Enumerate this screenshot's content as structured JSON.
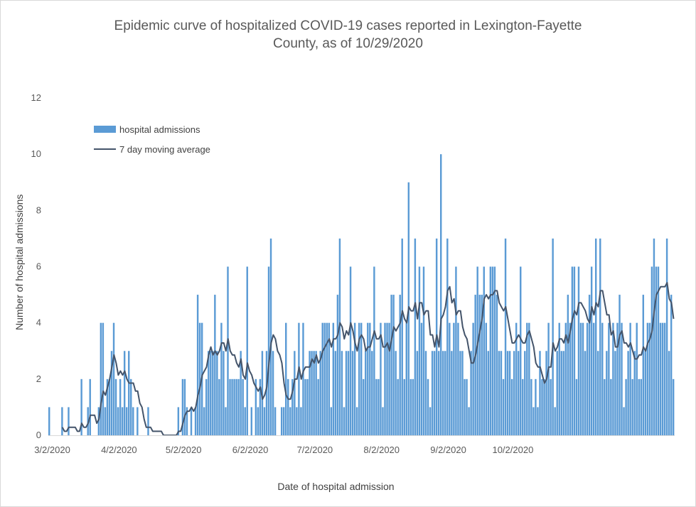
{
  "chart_data": {
    "type": "bar",
    "title_line1": "Epidemic curve of hospitalized COVID-19 cases reported in Lexington-Fayette",
    "title_line2": "County, as of 10/29/2020",
    "xlabel": "Date of hospital admission",
    "ylabel": "Number of hospital admissions",
    "ylim": [
      0,
      12
    ],
    "y_ticks": [
      "0",
      "2",
      "4",
      "6",
      "8",
      "10",
      "12"
    ],
    "x_start": "3/2/2020",
    "x_end": "10/29/2020",
    "x_ticks": [
      "3/2/2020",
      "4/2/2020",
      "5/2/2020",
      "6/2/2020",
      "7/2/2020",
      "8/2/2020",
      "9/2/2020",
      "10/2/2020"
    ],
    "grid": false,
    "legend_position": "top-left",
    "colors": {
      "bars": "#5b9bd5",
      "line": "#44546a"
    },
    "series": [
      {
        "name": "hospital admissions",
        "type": "bar",
        "values": [
          1,
          0,
          0,
          0,
          0,
          0,
          1,
          0,
          0,
          1,
          0,
          0,
          0,
          0,
          0,
          2,
          0,
          0,
          1,
          2,
          0,
          0,
          0,
          1,
          4,
          4,
          1,
          2,
          2,
          3,
          4,
          2,
          1,
          2,
          1,
          3,
          1,
          3,
          2,
          1,
          0,
          1,
          0,
          0,
          0,
          0,
          1,
          0,
          0,
          0,
          0,
          0,
          0,
          0,
          0,
          0,
          0,
          0,
          0,
          0,
          1,
          0,
          2,
          2,
          1,
          0,
          1,
          0,
          1,
          5,
          4,
          4,
          1,
          2,
          3,
          3,
          3,
          5,
          3,
          2,
          4,
          3,
          1,
          6,
          2,
          2,
          2,
          2,
          2,
          3,
          2,
          1,
          6,
          0,
          1,
          0,
          2,
          1,
          2,
          3,
          1,
          3,
          6,
          7,
          3,
          1,
          0,
          0,
          1,
          1,
          4,
          2,
          1,
          2,
          3,
          1,
          4,
          1,
          4,
          2,
          2,
          3,
          3,
          3,
          3,
          2,
          3,
          4,
          4,
          4,
          4,
          1,
          4,
          3,
          5,
          7,
          3,
          1,
          3,
          3,
          6,
          3,
          4,
          1,
          4,
          4,
          2,
          3,
          4,
          4,
          3,
          6,
          2,
          2,
          4,
          1,
          4,
          4,
          4,
          5,
          5,
          3,
          2,
          5,
          7,
          2,
          4,
          9,
          2,
          2,
          7,
          3,
          6,
          4,
          6,
          3,
          2,
          1,
          3,
          3,
          7,
          3,
          10,
          3,
          3,
          7,
          4,
          3,
          4,
          6,
          4,
          3,
          3,
          2,
          2,
          1,
          3,
          4,
          5,
          6,
          5,
          5,
          6,
          4,
          3,
          6,
          6,
          6,
          5,
          3,
          3,
          2,
          7,
          3,
          3,
          2,
          3,
          4,
          3,
          6,
          2,
          3,
          4,
          4,
          2,
          1,
          2,
          1,
          3,
          2,
          2,
          3,
          4,
          2,
          7,
          1,
          3,
          4,
          3,
          3,
          4,
          5,
          4,
          6,
          6,
          2,
          6,
          4,
          4,
          3,
          4,
          5,
          6,
          4,
          7,
          3,
          7,
          4,
          2,
          3,
          4,
          2,
          4,
          3,
          4,
          5,
          4,
          1,
          2,
          3,
          4,
          2,
          3,
          4,
          2,
          2,
          5,
          3,
          4,
          4,
          6,
          7,
          6,
          6,
          4,
          4,
          4,
          7,
          3,
          5,
          2
        ],
        "note_missing": ""
      }
    ],
    "moving_average_name": "7 day moving average"
  }
}
